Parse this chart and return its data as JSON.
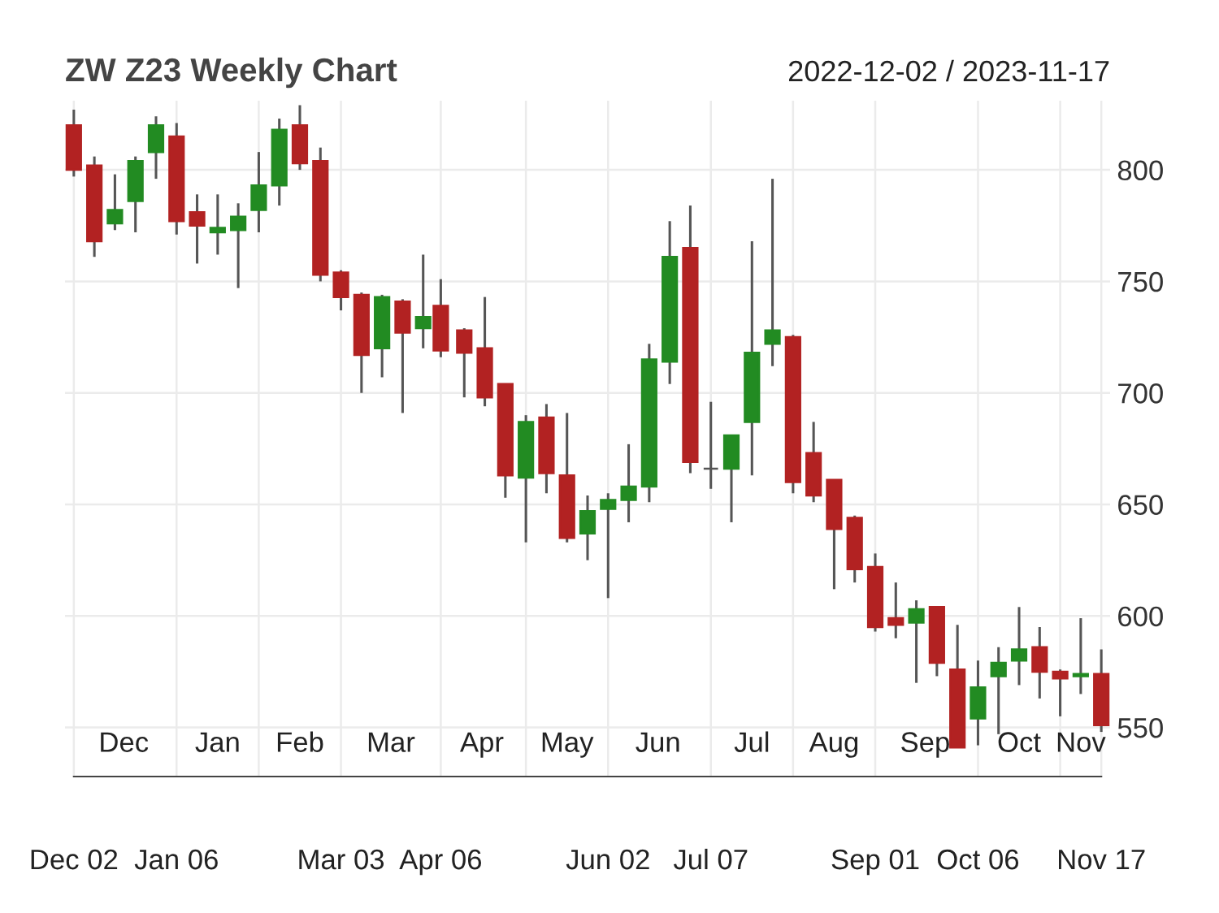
{
  "chart_data": {
    "type": "candlestick",
    "title": "ZW Z23 Weekly Chart",
    "subtitle": "2022-12-02 / 2023-11-17",
    "x": [
      "2022-12-02",
      "2022-12-09",
      "2022-12-16",
      "2022-12-23",
      "2022-12-30",
      "2023-01-06",
      "2023-01-13",
      "2023-01-20",
      "2023-01-27",
      "2023-02-03",
      "2023-02-10",
      "2023-02-17",
      "2023-02-24",
      "2023-03-03",
      "2023-03-10",
      "2023-03-17",
      "2023-03-24",
      "2023-03-31",
      "2023-04-06",
      "2023-04-14",
      "2023-04-21",
      "2023-04-28",
      "2023-05-05",
      "2023-05-12",
      "2023-05-19",
      "2023-05-26",
      "2023-06-02",
      "2023-06-09",
      "2023-06-16",
      "2023-06-23",
      "2023-06-30",
      "2023-07-07",
      "2023-07-14",
      "2023-07-21",
      "2023-07-28",
      "2023-08-04",
      "2023-08-11",
      "2023-08-18",
      "2023-08-25",
      "2023-09-01",
      "2023-09-08",
      "2023-09-15",
      "2023-09-22",
      "2023-09-29",
      "2023-10-06",
      "2023-10-13",
      "2023-10-20",
      "2023-10-27",
      "2023-11-03",
      "2023-11-10",
      "2023-11-17"
    ],
    "ohlc": [
      [
        820,
        827,
        797,
        800
      ],
      [
        802,
        806,
        761,
        768
      ],
      [
        776,
        798,
        773,
        782
      ],
      [
        786,
        806,
        772,
        804
      ],
      [
        808,
        824,
        796,
        820
      ],
      [
        815,
        821,
        771,
        777
      ],
      [
        781,
        789,
        758,
        775
      ],
      [
        772,
        789,
        762,
        774
      ],
      [
        773,
        785,
        747,
        779
      ],
      [
        782,
        808,
        772,
        793
      ],
      [
        793,
        823,
        784,
        818
      ],
      [
        820,
        829,
        800,
        803
      ],
      [
        804,
        810,
        750,
        753
      ],
      [
        754,
        755,
        737,
        743
      ],
      [
        744,
        745,
        700,
        717
      ],
      [
        720,
        744,
        707,
        743
      ],
      [
        741,
        742,
        691,
        727
      ],
      [
        729,
        762,
        720,
        734
      ],
      [
        739,
        751,
        716,
        719
      ],
      [
        728,
        729,
        698,
        718
      ],
      [
        720,
        743,
        694,
        698
      ],
      [
        704,
        704,
        653,
        663
      ],
      [
        662,
        690,
        633,
        687
      ],
      [
        689,
        695,
        655,
        664
      ],
      [
        663,
        691,
        633,
        635
      ],
      [
        637,
        654,
        625,
        647
      ],
      [
        648,
        655,
        608,
        652
      ],
      [
        652,
        677,
        642,
        658
      ],
      [
        658,
        722,
        651,
        715
      ],
      [
        714,
        777,
        704,
        761
      ],
      [
        765,
        784,
        664,
        669
      ],
      [
        666,
        696,
        657,
        666
      ],
      [
        666,
        681,
        642,
        681
      ],
      [
        687,
        768,
        663,
        718
      ],
      [
        722,
        796,
        712,
        728
      ],
      [
        725,
        726,
        655,
        660
      ],
      [
        673,
        687,
        651,
        654
      ],
      [
        661,
        661,
        612,
        639
      ],
      [
        644,
        645,
        615,
        621
      ],
      [
        622,
        628,
        593,
        595
      ],
      [
        599,
        615,
        590,
        596
      ],
      [
        597,
        607,
        570,
        603
      ],
      [
        604,
        604,
        573,
        579
      ],
      [
        576,
        596,
        541,
        541
      ],
      [
        554,
        580,
        542,
        568
      ],
      [
        573,
        586,
        547,
        579
      ],
      [
        580,
        604,
        569,
        585
      ],
      [
        586,
        595,
        563,
        575
      ],
      [
        575,
        576,
        555,
        572
      ],
      [
        573,
        599,
        565,
        574
      ],
      [
        574,
        585,
        548,
        551
      ]
    ],
    "colors": [
      "#b22222",
      "#b22222",
      "#228b22",
      "#228b22",
      "#228b22",
      "#b22222",
      "#b22222",
      "#228b22",
      "#228b22",
      "#228b22",
      "#228b22",
      "#b22222",
      "#b22222",
      "#b22222",
      "#b22222",
      "#228b22",
      "#b22222",
      "#228b22",
      "#b22222",
      "#b22222",
      "#b22222",
      "#b22222",
      "#228b22",
      "#b22222",
      "#b22222",
      "#228b22",
      "#228b22",
      "#228b22",
      "#228b22",
      "#228b22",
      "#b22222",
      "#555555",
      "#228b22",
      "#228b22",
      "#228b22",
      "#b22222",
      "#b22222",
      "#b22222",
      "#b22222",
      "#b22222",
      "#b22222",
      "#228b22",
      "#b22222",
      "#b22222",
      "#228b22",
      "#228b22",
      "#228b22",
      "#b22222",
      "#b22222",
      "#228b22",
      "#b22222"
    ],
    "ylim": [
      528,
      831
    ],
    "yticks": [
      550,
      600,
      650,
      700,
      750,
      800
    ],
    "xlim": [
      "2022-11-29",
      "2023-11-20"
    ],
    "x2ticks": [
      {
        "value": "2022-12-19",
        "label": "Dec"
      },
      {
        "value": "2023-01-20",
        "label": "Jan"
      },
      {
        "value": "2023-02-17",
        "label": "Feb"
      },
      {
        "value": "2023-03-20",
        "label": "Mar"
      },
      {
        "value": "2023-04-20",
        "label": "Apr"
      },
      {
        "value": "2023-05-19",
        "label": "May"
      },
      {
        "value": "2023-06-19",
        "label": "Jun"
      },
      {
        "value": "2023-07-21",
        "label": "Jul"
      },
      {
        "value": "2023-08-18",
        "label": "Aug"
      },
      {
        "value": "2023-09-18",
        "label": "Sep"
      },
      {
        "value": "2023-10-20",
        "label": "Oct"
      },
      {
        "value": "2023-11-10",
        "label": "Nov"
      }
    ],
    "x2lim": [
      "2022-11-29",
      "2023-11-20"
    ],
    "xticks": [
      {
        "value": "2022-12-02",
        "label": "Dec 02"
      },
      {
        "value": "2023-01-06",
        "label": "Jan 06"
      },
      {
        "value": "2023-02-03",
        "label": null
      },
      {
        "value": "2023-03-03",
        "label": "Mar 03"
      },
      {
        "value": "2023-04-06",
        "label": "Apr 06"
      },
      {
        "value": "2023-05-05",
        "label": null
      },
      {
        "value": "2023-06-02",
        "label": "Jun 02"
      },
      {
        "value": "2023-07-07",
        "label": "Jul 07"
      },
      {
        "value": "2023-08-04",
        "label": null
      },
      {
        "value": "2023-09-01",
        "label": "Sep 01"
      },
      {
        "value": "2023-10-06",
        "label": "Oct 06"
      },
      {
        "value": "2023-11-03",
        "label": null
      },
      {
        "value": "2023-11-17",
        "label": "Nov 17"
      }
    ],
    "grid": true
  }
}
